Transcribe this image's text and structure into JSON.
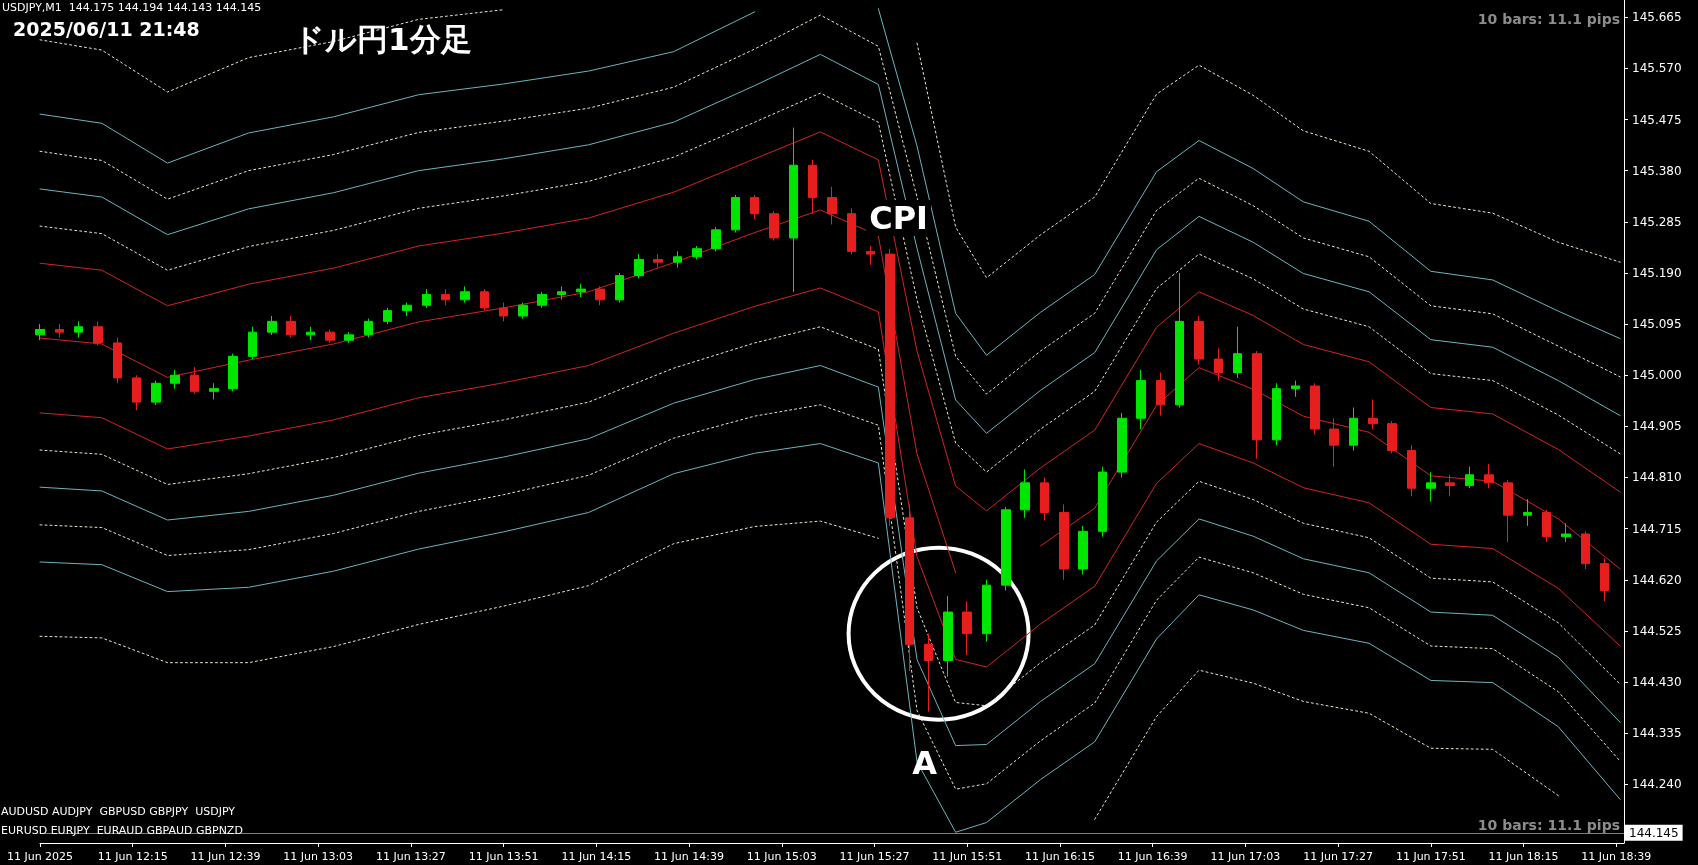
{
  "chart_data": {
    "type": "candlestick",
    "title": "ドル円1分足",
    "subtitle": "2025/06/11 21:48",
    "annotations": [
      "USDJPY,M1  144.175 144.194 144.143 144.145",
      "10 bars: 11.1 pips",
      "10 bars: 11.1 pips",
      "AUDUSD AUDJPY  GBPUSD GBPJPY  USDJPY",
      "EURUSD EURJPY  EURAUD GBPAUD GBPNZD",
      "CPI",
      "A"
    ],
    "marker": "none",
    "xlim": [
      "2025-06-11T11:51",
      "2025-06-11T18:41"
    ],
    "xticks": [
      {
        "value": "2025-06-11T11:51",
        "label": "11 Jun 2025"
      },
      {
        "value": "2025-06-11T12:15",
        "label": "11 Jun 12:15"
      },
      {
        "value": "2025-06-11T12:39",
        "label": "11 Jun 12:39"
      },
      {
        "value": "2025-06-11T13:03",
        "label": "11 Jun 13:03"
      },
      {
        "value": "2025-06-11T13:27",
        "label": "11 Jun 13:27"
      },
      {
        "value": "2025-06-11T13:51",
        "label": "11 Jun 13:51"
      },
      {
        "value": "2025-06-11T14:15",
        "label": "11 Jun 14:15"
      },
      {
        "value": "2025-06-11T14:39",
        "label": "11 Jun 14:39"
      },
      {
        "value": "2025-06-11T15:03",
        "label": "11 Jun 15:03"
      },
      {
        "value": "2025-06-11T15:27",
        "label": "11 Jun 15:27"
      },
      {
        "value": "2025-06-11T15:51",
        "label": "11 Jun 15:51"
      },
      {
        "value": "2025-06-11T16:15",
        "label": "11 Jun 16:15"
      },
      {
        "value": "2025-06-11T16:39",
        "label": "11 Jun 16:39"
      },
      {
        "value": "2025-06-11T17:03",
        "label": "11 Jun 17:03"
      },
      {
        "value": "2025-06-11T17:27",
        "label": "11 Jun 17:27"
      },
      {
        "value": "2025-06-11T17:51",
        "label": "11 Jun 17:51"
      },
      {
        "value": "2025-06-11T18:15",
        "label": "11 Jun 18:15"
      },
      {
        "value": "2025-06-11T18:39",
        "label": "11 Jun 18:39"
      }
    ],
    "ylim": [
      144.131,
      145.697
    ],
    "yticks": [
      {
        "value": 144.24,
        "label": "144.240"
      },
      {
        "value": 144.335,
        "label": "144.335"
      },
      {
        "value": 144.43,
        "label": "144.430"
      },
      {
        "value": 144.525,
        "label": "144.525"
      },
      {
        "value": 144.62,
        "label": "144.620"
      },
      {
        "value": 144.715,
        "label": "144.715"
      },
      {
        "value": 144.81,
        "label": "144.810"
      },
      {
        "value": 144.905,
        "label": "144.905"
      },
      {
        "value": 145.0,
        "label": "145.000"
      },
      {
        "value": 145.095,
        "label": "145.095"
      },
      {
        "value": 145.19,
        "label": "145.190"
      },
      {
        "value": 145.285,
        "label": "145.285"
      },
      {
        "value": 145.38,
        "label": "145.380"
      },
      {
        "value": 145.475,
        "label": "145.475"
      },
      {
        "value": 145.57,
        "label": "145.570"
      },
      {
        "value": 145.665,
        "label": "145.665"
      }
    ],
    "ref_lines": [
      {
        "axis": "y",
        "value": 144.145,
        "label": "144.145",
        "color": "#808080"
      }
    ],
    "x": [
      "2025-06-11T11:51",
      "2025-06-11T11:56",
      "2025-06-11T12:01",
      "2025-06-11T12:06",
      "2025-06-11T12:11",
      "2025-06-11T12:16",
      "2025-06-11T12:21",
      "2025-06-11T12:26",
      "2025-06-11T12:31",
      "2025-06-11T12:36",
      "2025-06-11T12:41",
      "2025-06-11T12:46",
      "2025-06-11T12:51",
      "2025-06-11T12:56",
      "2025-06-11T13:01",
      "2025-06-11T13:06",
      "2025-06-11T13:11",
      "2025-06-11T13:16",
      "2025-06-11T13:21",
      "2025-06-11T13:26",
      "2025-06-11T13:31",
      "2025-06-11T13:36",
      "2025-06-11T13:41",
      "2025-06-11T13:46",
      "2025-06-11T13:51",
      "2025-06-11T13:56",
      "2025-06-11T14:01",
      "2025-06-11T14:06",
      "2025-06-11T14:11",
      "2025-06-11T14:16",
      "2025-06-11T14:21",
      "2025-06-11T14:26",
      "2025-06-11T14:31",
      "2025-06-11T14:36",
      "2025-06-11T14:41",
      "2025-06-11T14:46",
      "2025-06-11T14:51",
      "2025-06-11T14:56",
      "2025-06-11T15:01",
      "2025-06-11T15:06",
      "2025-06-11T15:11",
      "2025-06-11T15:16",
      "2025-06-11T15:21",
      "2025-06-11T15:26",
      "2025-06-11T15:31",
      "2025-06-11T15:36",
      "2025-06-11T15:41",
      "2025-06-11T15:46",
      "2025-06-11T15:51",
      "2025-06-11T15:56",
      "2025-06-11T16:01",
      "2025-06-11T16:06",
      "2025-06-11T16:11",
      "2025-06-11T16:16",
      "2025-06-11T16:21",
      "2025-06-11T16:26",
      "2025-06-11T16:31",
      "2025-06-11T16:36",
      "2025-06-11T16:41",
      "2025-06-11T16:46",
      "2025-06-11T16:51",
      "2025-06-11T16:56",
      "2025-06-11T17:01",
      "2025-06-11T17:06",
      "2025-06-11T17:11",
      "2025-06-11T17:16",
      "2025-06-11T17:21",
      "2025-06-11T17:26",
      "2025-06-11T17:31",
      "2025-06-11T17:36",
      "2025-06-11T17:41",
      "2025-06-11T17:46",
      "2025-06-11T17:51",
      "2025-06-11T17:56",
      "2025-06-11T18:01",
      "2025-06-11T18:06",
      "2025-06-11T18:11",
      "2025-06-11T18:16",
      "2025-06-11T18:21",
      "2025-06-11T18:26",
      "2025-06-11T18:31",
      "2025-06-11T18:36"
    ],
    "ohlc": [
      [
        145.075,
        145.095,
        145.065,
        145.085
      ],
      [
        145.085,
        145.095,
        145.07,
        145.08
      ],
      [
        145.08,
        145.1,
        145.07,
        145.09
      ],
      [
        145.09,
        145.1,
        145.055,
        145.06
      ],
      [
        145.06,
        145.07,
        144.985,
        144.995
      ],
      [
        144.995,
        145.0,
        144.935,
        144.95
      ],
      [
        144.95,
        144.99,
        144.945,
        144.985
      ],
      [
        144.985,
        145.01,
        144.975,
        145.0
      ],
      [
        145.0,
        145.015,
        144.965,
        144.97
      ],
      [
        144.97,
        144.985,
        144.955,
        144.975
      ],
      [
        144.975,
        145.04,
        144.97,
        145.035
      ],
      [
        145.035,
        145.09,
        145.03,
        145.08
      ],
      [
        145.08,
        145.11,
        145.075,
        145.1
      ],
      [
        145.1,
        145.11,
        145.07,
        145.075
      ],
      [
        145.075,
        145.09,
        145.065,
        145.08
      ],
      [
        145.08,
        145.085,
        145.06,
        145.065
      ],
      [
        145.065,
        145.08,
        145.06,
        145.075
      ],
      [
        145.075,
        145.105,
        145.07,
        145.1
      ],
      [
        145.1,
        145.125,
        145.095,
        145.12
      ],
      [
        145.12,
        145.135,
        145.11,
        145.13
      ],
      [
        145.13,
        145.16,
        145.125,
        145.15
      ],
      [
        145.15,
        145.16,
        145.13,
        145.14
      ],
      [
        145.14,
        145.165,
        145.135,
        145.155
      ],
      [
        145.155,
        145.16,
        145.12,
        145.125
      ],
      [
        145.125,
        145.135,
        145.1,
        145.11
      ],
      [
        145.11,
        145.135,
        145.105,
        145.13
      ],
      [
        145.13,
        145.155,
        145.125,
        145.15
      ],
      [
        145.15,
        145.165,
        145.14,
        145.155
      ],
      [
        145.155,
        145.17,
        145.145,
        145.16
      ],
      [
        145.16,
        145.165,
        145.13,
        145.14
      ],
      [
        145.14,
        145.19,
        145.135,
        145.185
      ],
      [
        145.185,
        145.225,
        145.18,
        145.215
      ],
      [
        145.215,
        145.225,
        145.2,
        145.21
      ],
      [
        145.21,
        145.23,
        145.2,
        145.22
      ],
      [
        145.22,
        145.24,
        145.215,
        145.235
      ],
      [
        145.235,
        145.275,
        145.23,
        145.27
      ],
      [
        145.27,
        145.335,
        145.265,
        145.33
      ],
      [
        145.33,
        145.335,
        145.29,
        145.3
      ],
      [
        145.3,
        145.305,
        145.25,
        145.255
      ],
      [
        145.255,
        145.46,
        145.155,
        145.39
      ],
      [
        145.39,
        145.4,
        145.3,
        145.33
      ],
      [
        145.33,
        145.35,
        145.28,
        145.3
      ],
      [
        145.3,
        145.31,
        145.225,
        145.23
      ],
      [
        145.23,
        145.24,
        145.205,
        145.225
      ],
      [
        145.225,
        145.235,
        144.72,
        144.735
      ],
      [
        144.735,
        144.76,
        144.45,
        144.5
      ],
      [
        144.5,
        144.52,
        144.375,
        144.47
      ],
      [
        144.47,
        144.59,
        144.44,
        144.56
      ],
      [
        144.56,
        144.58,
        144.48,
        144.52
      ],
      [
        144.52,
        144.62,
        144.505,
        144.61
      ],
      [
        144.61,
        144.755,
        144.6,
        144.75
      ],
      [
        144.75,
        144.825,
        144.735,
        144.8
      ],
      [
        144.8,
        144.81,
        144.73,
        144.745
      ],
      [
        144.745,
        144.76,
        144.62,
        144.64
      ],
      [
        144.64,
        144.72,
        144.63,
        144.71
      ],
      [
        144.71,
        144.83,
        144.7,
        144.82
      ],
      [
        144.82,
        144.93,
        144.81,
        144.92
      ],
      [
        144.92,
        145.01,
        144.9,
        144.99
      ],
      [
        144.99,
        145.005,
        144.925,
        144.945
      ],
      [
        144.945,
        145.19,
        144.94,
        145.1
      ],
      [
        145.1,
        145.11,
        145.02,
        145.03
      ],
      [
        145.03,
        145.05,
        144.99,
        145.005
      ],
      [
        145.005,
        145.09,
        144.995,
        145.04
      ],
      [
        145.04,
        145.045,
        144.845,
        144.88
      ],
      [
        144.88,
        144.985,
        144.87,
        144.975
      ],
      [
        144.975,
        144.99,
        144.96,
        144.98
      ],
      [
        144.98,
        144.985,
        144.89,
        144.9
      ],
      [
        144.9,
        144.92,
        144.83,
        144.87
      ],
      [
        144.87,
        144.94,
        144.86,
        144.92
      ],
      [
        144.92,
        144.955,
        144.9,
        144.91
      ],
      [
        144.91,
        144.915,
        144.855,
        144.86
      ],
      [
        144.86,
        144.87,
        144.775,
        144.79
      ],
      [
        144.79,
        144.82,
        144.765,
        144.8
      ],
      [
        144.8,
        144.815,
        144.775,
        144.795
      ],
      [
        144.795,
        144.83,
        144.79,
        144.815
      ],
      [
        144.815,
        144.835,
        144.79,
        144.8
      ],
      [
        144.8,
        144.805,
        144.69,
        144.74
      ],
      [
        144.74,
        144.77,
        144.72,
        144.745
      ],
      [
        144.745,
        144.75,
        144.69,
        144.7
      ],
      [
        144.7,
        144.725,
        144.69,
        144.705
      ],
      [
        144.705,
        144.71,
        144.64,
        144.65
      ],
      [
        144.65,
        144.66,
        144.58,
        144.6
      ]
    ],
    "colors": [
      "#00e600",
      "#e61e1e",
      "#00e600",
      "#e61e1e",
      "#e61e1e",
      "#e61e1e",
      "#00e600",
      "#00e600",
      "#e61e1e",
      "#00e600",
      "#00e600",
      "#00e600",
      "#00e600",
      "#e61e1e",
      "#00e600",
      "#e61e1e",
      "#00e600",
      "#00e600",
      "#00e600",
      "#00e600",
      "#00e600",
      "#e61e1e",
      "#00e600",
      "#e61e1e",
      "#e61e1e",
      "#00e600",
      "#00e600",
      "#00e600",
      "#00e600",
      "#e61e1e",
      "#00e600",
      "#00e600",
      "#e61e1e",
      "#00e600",
      "#00e600",
      "#00e600",
      "#00e600",
      "#e61e1e",
      "#e61e1e",
      "#00e600",
      "#e61e1e",
      "#e61e1e",
      "#e61e1e",
      "#e61e1e",
      "#e61e1e",
      "#e61e1e",
      "#e61e1e",
      "#00e600",
      "#e61e1e",
      "#00e600",
      "#00e600",
      "#00e600",
      "#e61e1e",
      "#e61e1e",
      "#00e600",
      "#00e600",
      "#00e600",
      "#00e600",
      "#e61e1e",
      "#00e600",
      "#e61e1e",
      "#e61e1e",
      "#00e600",
      "#e61e1e",
      "#00e600",
      "#00e600",
      "#e61e1e",
      "#e61e1e",
      "#00e600",
      "#e61e1e",
      "#e61e1e",
      "#e61e1e",
      "#00e600",
      "#e61e1e",
      "#00e600",
      "#e61e1e",
      "#e61e1e",
      "#00e600",
      "#e61e1e",
      "#00e600",
      "#e61e1e",
      "#e61e1e"
    ],
    "series": [
      {
        "type": "line",
        "color": "#e8e8d0",
        "line_style": "dotted",
        "x": [
          "2025-06-11T11:51",
          "2025-06-11T12:07",
          "2025-06-11T12:24",
          "2025-06-11T12:45",
          "2025-06-11T13:07",
          "2025-06-11T13:29",
          "2025-06-11T13:51",
          "2025-06-11T14:13",
          "2025-06-11T14:35",
          "2025-06-11T14:56",
          "2025-06-11T15:13",
          "2025-06-11T15:28",
          "2025-06-11T15:38",
          "2025-06-11T15:48",
          "2025-06-11T15:56",
          "2025-06-11T16:10",
          "2025-06-11T16:24",
          "2025-06-11T16:40",
          "2025-06-11T16:51",
          "2025-06-11T17:05",
          "2025-06-11T17:18",
          "2025-06-11T17:35",
          "2025-06-11T17:51",
          "2025-06-11T18:07",
          "2025-06-11T18:24",
          "2025-06-11T18:40"
        ],
        "values": [
          145.623,
          145.604,
          145.526,
          145.59,
          145.62,
          145.661,
          145.679,
          null,
          null,
          null,
          null,
          null,
          145.617,
          145.275,
          145.181,
          145.261,
          145.331,
          145.522,
          145.576,
          145.52,
          145.454,
          145.416,
          145.319,
          145.301,
          145.247,
          145.21
        ]
      },
      {
        "type": "line",
        "color": "#6cb4bc",
        "line_style": "solid",
        "x": [
          "2025-06-11T11:51",
          "2025-06-11T12:07",
          "2025-06-11T12:24",
          "2025-06-11T12:45",
          "2025-06-11T13:07",
          "2025-06-11T13:29",
          "2025-06-11T13:51",
          "2025-06-11T14:13",
          "2025-06-11T14:35",
          "2025-06-11T14:56",
          "2025-06-11T15:13",
          "2025-06-11T15:28",
          "2025-06-11T15:38",
          "2025-06-11T15:48",
          "2025-06-11T15:56",
          "2025-06-11T16:10",
          "2025-06-11T16:24",
          "2025-06-11T16:40",
          "2025-06-11T16:51",
          "2025-06-11T17:05",
          "2025-06-11T17:18",
          "2025-06-11T17:35",
          "2025-06-11T17:51",
          "2025-06-11T18:07",
          "2025-06-11T18:24",
          "2025-06-11T18:40"
        ],
        "values": [
          145.485,
          145.468,
          145.394,
          145.45,
          145.48,
          145.521,
          145.541,
          145.565,
          145.601,
          145.675,
          null,
          145.681,
          145.426,
          145.115,
          145.037,
          145.117,
          145.187,
          145.378,
          145.436,
          145.384,
          145.322,
          145.286,
          145.193,
          145.177,
          145.119,
          145.068
        ]
      },
      {
        "type": "line",
        "color": "#e8e8d0",
        "line_style": "dotted",
        "x": [
          "2025-06-11T11:51",
          "2025-06-11T12:07",
          "2025-06-11T12:24",
          "2025-06-11T12:45",
          "2025-06-11T13:07",
          "2025-06-11T13:29",
          "2025-06-11T13:51",
          "2025-06-11T14:13",
          "2025-06-11T14:35",
          "2025-06-11T14:56",
          "2025-06-11T15:13",
          "2025-06-11T15:28",
          "2025-06-11T15:38",
          "2025-06-11T15:48",
          "2025-06-11T15:56",
          "2025-06-11T16:10",
          "2025-06-11T16:24",
          "2025-06-11T16:40",
          "2025-06-11T16:51",
          "2025-06-11T17:05",
          "2025-06-11T17:18",
          "2025-06-11T17:35",
          "2025-06-11T17:51",
          "2025-06-11T18:07",
          "2025-06-11T18:24",
          "2025-06-11T18:40"
        ],
        "values": [
          145.416,
          145.399,
          145.327,
          145.38,
          145.41,
          145.451,
          145.472,
          145.496,
          145.535,
          145.606,
          145.669,
          145.611,
          145.331,
          145.035,
          144.965,
          145.045,
          145.115,
          145.306,
          145.366,
          145.315,
          145.255,
          145.22,
          145.129,
          145.114,
          145.054,
          144.997
        ]
      },
      {
        "type": "line",
        "color": "#6cb4bc",
        "line_style": "solid",
        "x": [
          "2025-06-11T11:51",
          "2025-06-11T12:07",
          "2025-06-11T12:24",
          "2025-06-11T12:45",
          "2025-06-11T13:07",
          "2025-06-11T13:29",
          "2025-06-11T13:51",
          "2025-06-11T14:13",
          "2025-06-11T14:35",
          "2025-06-11T14:56",
          "2025-06-11T15:13",
          "2025-06-11T15:28",
          "2025-06-11T15:38",
          "2025-06-11T15:48",
          "2025-06-11T15:56",
          "2025-06-11T16:10",
          "2025-06-11T16:24",
          "2025-06-11T16:40",
          "2025-06-11T16:51",
          "2025-06-11T17:05",
          "2025-06-11T17:18",
          "2025-06-11T17:35",
          "2025-06-11T17:51",
          "2025-06-11T18:07",
          "2025-06-11T18:24",
          "2025-06-11T18:40"
        ],
        "values": [
          145.346,
          145.331,
          145.261,
          145.309,
          145.339,
          145.38,
          145.402,
          145.428,
          145.47,
          145.538,
          145.596,
          145.54,
          145.236,
          144.954,
          144.892,
          144.972,
          145.042,
          145.233,
          145.295,
          145.247,
          145.189,
          145.155,
          145.066,
          145.052,
          144.99,
          144.925
        ]
      },
      {
        "type": "line",
        "color": "#e8e8d0",
        "line_style": "dotted",
        "x": [
          "2025-06-11T11:51",
          "2025-06-11T12:07",
          "2025-06-11T12:24",
          "2025-06-11T12:45",
          "2025-06-11T13:07",
          "2025-06-11T13:29",
          "2025-06-11T13:51",
          "2025-06-11T14:13",
          "2025-06-11T14:35",
          "2025-06-11T14:56",
          "2025-06-11T15:13",
          "2025-06-11T15:28",
          "2025-06-11T15:38",
          "2025-06-11T15:48",
          "2025-06-11T15:56",
          "2025-06-11T16:10",
          "2025-06-11T16:24",
          "2025-06-11T16:40",
          "2025-06-11T16:51",
          "2025-06-11T17:05",
          "2025-06-11T17:18",
          "2025-06-11T17:35",
          "2025-06-11T17:51",
          "2025-06-11T18:07",
          "2025-06-11T18:24",
          "2025-06-11T18:40"
        ],
        "values": [
          145.277,
          145.263,
          145.195,
          145.239,
          145.269,
          145.31,
          145.333,
          145.36,
          145.405,
          145.47,
          145.524,
          145.47,
          145.14,
          144.874,
          144.82,
          144.9,
          144.97,
          145.161,
          145.225,
          145.179,
          145.123,
          145.09,
          145.003,
          144.99,
          144.926,
          144.854
        ]
      },
      {
        "type": "line",
        "color": "#d22323",
        "line_style": "solid",
        "x": [
          "2025-06-11T11:51",
          "2025-06-11T12:07",
          "2025-06-11T12:24",
          "2025-06-11T12:45",
          "2025-06-11T13:07",
          "2025-06-11T13:29",
          "2025-06-11T13:51",
          "2025-06-11T14:13",
          "2025-06-11T14:35",
          "2025-06-11T14:56",
          "2025-06-11T15:13",
          "2025-06-11T15:28",
          "2025-06-11T15:38",
          "2025-06-11T15:48",
          "2025-06-11T15:56",
          "2025-06-11T16:10",
          "2025-06-11T16:24",
          "2025-06-11T16:40",
          "2025-06-11T16:51",
          "2025-06-11T17:05",
          "2025-06-11T17:18",
          "2025-06-11T17:35",
          "2025-06-11T17:51",
          "2025-06-11T18:07",
          "2025-06-11T18:24",
          "2025-06-11T18:40"
        ],
        "values": [
          145.208,
          145.195,
          145.129,
          145.169,
          145.199,
          145.24,
          145.264,
          145.292,
          145.34,
          145.402,
          145.452,
          145.4,
          145.045,
          144.794,
          144.748,
          144.828,
          144.898,
          145.089,
          145.155,
          145.111,
          145.057,
          145.025,
          144.94,
          144.928,
          144.862,
          144.783
        ]
      },
      {
        "type": "line",
        "color": "#d22323",
        "line_style": "solid",
        "x": [
          "2025-06-11T11:51",
          "2025-06-11T12:07",
          "2025-06-11T12:24",
          "2025-06-11T12:45",
          "2025-06-11T13:07",
          "2025-06-11T13:29",
          "2025-06-11T13:51",
          "2025-06-11T14:13",
          "2025-06-11T14:35",
          "2025-06-11T14:56",
          "2025-06-11T15:13",
          "2025-06-11T15:28",
          "2025-06-11T15:38",
          "2025-06-11T15:48",
          "2025-06-11T15:56",
          "2025-06-11T16:10",
          "2025-06-11T16:24",
          "2025-06-11T16:40",
          "2025-06-11T16:51",
          "2025-06-11T17:05",
          "2025-06-11T17:18",
          "2025-06-11T17:35",
          "2025-06-11T17:51",
          "2025-06-11T18:07",
          "2025-06-11T18:24",
          "2025-06-11T18:40"
        ],
        "values": [
          145.069,
          145.058,
          144.996,
          145.028,
          145.058,
          145.099,
          145.125,
          145.155,
          145.209,
          145.265,
          145.307,
          145.259,
          144.854,
          144.633,
          null,
          144.683,
          144.753,
          144.944,
          145.014,
          144.974,
          144.924,
          144.894,
          144.813,
          144.803,
          144.733,
          144.64
        ]
      },
      {
        "type": "line",
        "color": "#d22323",
        "line_style": "solid",
        "x": [
          "2025-06-11T11:51",
          "2025-06-11T12:07",
          "2025-06-11T12:24",
          "2025-06-11T12:45",
          "2025-06-11T13:07",
          "2025-06-11T13:29",
          "2025-06-11T13:51",
          "2025-06-11T14:13",
          "2025-06-11T14:35",
          "2025-06-11T14:56",
          "2025-06-11T15:13",
          "2025-06-11T15:28",
          "2025-06-11T15:38",
          "2025-06-11T15:48",
          "2025-06-11T15:56",
          "2025-06-11T16:10",
          "2025-06-11T16:24",
          "2025-06-11T16:40",
          "2025-06-11T16:51",
          "2025-06-11T17:05",
          "2025-06-11T17:18",
          "2025-06-11T17:35",
          "2025-06-11T17:51",
          "2025-06-11T18:07",
          "2025-06-11T18:24",
          "2025-06-11T18:40"
        ],
        "values": [
          144.93,
          144.921,
          144.863,
          144.887,
          144.917,
          144.958,
          144.986,
          145.018,
          145.078,
          145.128,
          145.162,
          145.118,
          144.663,
          144.472,
          144.458,
          144.538,
          144.608,
          144.799,
          144.873,
          144.837,
          144.791,
          144.763,
          144.686,
          144.678,
          144.604,
          144.497
        ]
      },
      {
        "type": "line",
        "color": "#e8e8d0",
        "line_style": "dotted",
        "x": [
          "2025-06-11T11:51",
          "2025-06-11T12:07",
          "2025-06-11T12:24",
          "2025-06-11T12:45",
          "2025-06-11T13:07",
          "2025-06-11T13:29",
          "2025-06-11T13:51",
          "2025-06-11T14:13",
          "2025-06-11T14:35",
          "2025-06-11T14:56",
          "2025-06-11T15:13",
          "2025-06-11T15:28",
          "2025-06-11T15:38",
          "2025-06-11T15:48",
          "2025-06-11T15:56",
          "2025-06-11T16:10",
          "2025-06-11T16:24",
          "2025-06-11T16:40",
          "2025-06-11T16:51",
          "2025-06-11T17:05",
          "2025-06-11T17:18",
          "2025-06-11T17:35",
          "2025-06-11T17:51",
          "2025-06-11T18:07",
          "2025-06-11T18:24",
          "2025-06-11T18:40"
        ],
        "values": [
          144.861,
          144.853,
          144.797,
          144.817,
          144.847,
          144.888,
          144.917,
          144.95,
          145.013,
          145.06,
          145.09,
          145.048,
          144.568,
          144.392,
          144.386,
          144.466,
          144.536,
          144.727,
          144.803,
          144.769,
          144.725,
          144.698,
          144.623,
          144.616,
          144.54,
          144.426
        ]
      },
      {
        "type": "line",
        "color": "#6cb4bc",
        "line_style": "solid",
        "x": [
          "2025-06-11T11:51",
          "2025-06-11T12:07",
          "2025-06-11T12:24",
          "2025-06-11T12:45",
          "2025-06-11T13:07",
          "2025-06-11T13:29",
          "2025-06-11T13:51",
          "2025-06-11T14:13",
          "2025-06-11T14:35",
          "2025-06-11T14:56",
          "2025-06-11T15:13",
          "2025-06-11T15:28",
          "2025-06-11T15:38",
          "2025-06-11T15:48",
          "2025-06-11T15:56",
          "2025-06-11T16:10",
          "2025-06-11T16:24",
          "2025-06-11T16:40",
          "2025-06-11T16:51",
          "2025-06-11T17:05",
          "2025-06-11T17:18",
          "2025-06-11T17:35",
          "2025-06-11T17:51",
          "2025-06-11T18:07",
          "2025-06-11T18:24",
          "2025-06-11T18:40"
        ],
        "values": [
          144.792,
          144.785,
          144.731,
          144.747,
          144.777,
          144.818,
          144.848,
          144.882,
          144.948,
          144.992,
          145.018,
          144.978,
          144.472,
          144.312,
          144.314,
          144.394,
          144.464,
          144.655,
          144.733,
          144.701,
          144.659,
          144.633,
          144.56,
          144.554,
          144.476,
          144.355
        ]
      },
      {
        "type": "line",
        "color": "#e8e8d0",
        "line_style": "dotted",
        "x": [
          "2025-06-11T11:51",
          "2025-06-11T12:07",
          "2025-06-11T12:24",
          "2025-06-11T12:45",
          "2025-06-11T13:07",
          "2025-06-11T13:29",
          "2025-06-11T13:51",
          "2025-06-11T14:13",
          "2025-06-11T14:35",
          "2025-06-11T14:56",
          "2025-06-11T15:13",
          "2025-06-11T15:28",
          "2025-06-11T15:38",
          "2025-06-11T15:48",
          "2025-06-11T15:56",
          "2025-06-11T16:10",
          "2025-06-11T16:24",
          "2025-06-11T16:40",
          "2025-06-11T16:51",
          "2025-06-11T17:05",
          "2025-06-11T17:18",
          "2025-06-11T17:35",
          "2025-06-11T17:51",
          "2025-06-11T18:07",
          "2025-06-11T18:24",
          "2025-06-11T18:40"
        ],
        "values": [
          144.722,
          144.717,
          144.665,
          144.676,
          144.706,
          144.747,
          144.778,
          144.814,
          144.883,
          144.924,
          144.945,
          144.907,
          144.377,
          144.231,
          144.241,
          144.321,
          144.391,
          144.582,
          144.662,
          144.633,
          144.593,
          144.568,
          144.497,
          144.492,
          144.412,
          144.283
        ]
      },
      {
        "type": "line",
        "color": "#6cb4bc",
        "line_style": "solid",
        "x": [
          "2025-06-11T11:51",
          "2025-06-11T12:07",
          "2025-06-11T12:24",
          "2025-06-11T12:45",
          "2025-06-11T13:07",
          "2025-06-11T13:29",
          "2025-06-11T13:51",
          "2025-06-11T14:13",
          "2025-06-11T14:35",
          "2025-06-11T14:56",
          "2025-06-11T15:13",
          "2025-06-11T15:28",
          "2025-06-11T15:38",
          "2025-06-11T15:48",
          "2025-06-11T15:56",
          "2025-06-11T16:10",
          "2025-06-11T16:24",
          "2025-06-11T16:40",
          "2025-06-11T16:51",
          "2025-06-11T17:05",
          "2025-06-11T17:18",
          "2025-06-11T17:35",
          "2025-06-11T17:51",
          "2025-06-11T18:07",
          "2025-06-11T18:24",
          "2025-06-11T18:40"
        ],
        "values": [
          144.653,
          144.648,
          144.598,
          144.606,
          144.636,
          144.677,
          144.709,
          144.745,
          144.817,
          144.855,
          144.873,
          144.837,
          144.282,
          144.151,
          144.169,
          144.249,
          144.319,
          144.51,
          144.592,
          144.564,
          144.526,
          144.502,
          144.433,
          144.429,
          144.347,
          144.212
        ]
      },
      {
        "type": "line",
        "color": "#e8e8d0",
        "line_style": "dotted",
        "x": [
          "2025-06-11T11:51",
          "2025-06-11T12:07",
          "2025-06-11T12:24",
          "2025-06-11T12:45",
          "2025-06-11T13:07",
          "2025-06-11T13:29",
          "2025-06-11T13:51",
          "2025-06-11T14:13",
          "2025-06-11T14:35",
          "2025-06-11T14:56",
          "2025-06-11T15:13",
          "2025-06-11T15:28",
          "2025-06-11T15:38",
          "2025-06-11T15:48",
          "2025-06-11T15:56",
          "2025-06-11T16:10",
          "2025-06-11T16:24",
          "2025-06-11T16:40",
          "2025-06-11T16:51",
          "2025-06-11T17:05",
          "2025-06-11T17:18",
          "2025-06-11T17:35",
          "2025-06-11T17:51",
          "2025-06-11T18:07",
          "2025-06-11T18:24"
        ],
        "values": [
          144.515,
          144.512,
          144.466,
          144.466,
          144.496,
          144.537,
          144.571,
          144.609,
          144.687,
          144.719,
          144.729,
          144.697,
          null,
          null,
          null,
          null,
          144.175,
          144.366,
          144.452,
          144.428,
          144.394,
          144.372,
          144.307,
          144.305,
          144.219
        ]
      }
    ]
  }
}
